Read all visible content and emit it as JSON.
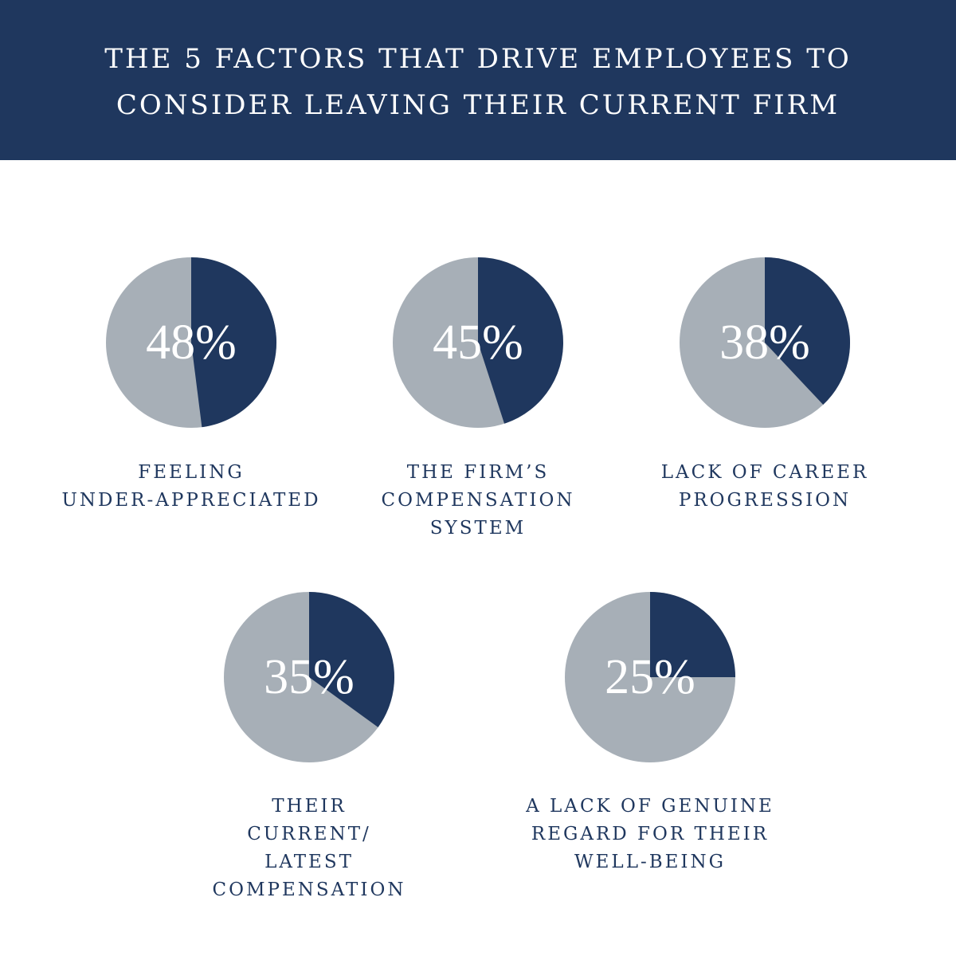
{
  "header": {
    "title_lines": [
      "THE 5 FACTORS THAT DRIVE EMPLOYEES TO",
      "CONSIDER LEAVING THEIR CURRENT FIRM"
    ]
  },
  "colors": {
    "navy": "#1f375e",
    "gray": "#a7afb7",
    "white": "#ffffff"
  },
  "chart_data": {
    "type": "pie",
    "title": "THE 5 FACTORS THAT DRIVE EMPLOYEES TO CONSIDER LEAVING THEIR CURRENT FIRM",
    "items": [
      {
        "value_label": "48%",
        "value": 48,
        "label_lines": [
          "FEELING",
          "UNDER-APPRECIATED"
        ]
      },
      {
        "value_label": "45%",
        "value": 45,
        "label_lines": [
          "THE FIRM’S",
          "COMPENSATION",
          "SYSTEM"
        ]
      },
      {
        "value_label": "38%",
        "value": 38,
        "label_lines": [
          "LACK OF CAREER",
          "PROGRESSION"
        ]
      },
      {
        "value_label": "35%",
        "value": 35,
        "label_lines": [
          "THEIR",
          "CURRENT/",
          "LATEST",
          "COMPENSATION"
        ]
      },
      {
        "value_label": "25%",
        "value": 25,
        "label_lines": [
          "A LACK OF GENUINE",
          "REGARD FOR THEIR",
          "WELL-BEING"
        ]
      }
    ]
  }
}
